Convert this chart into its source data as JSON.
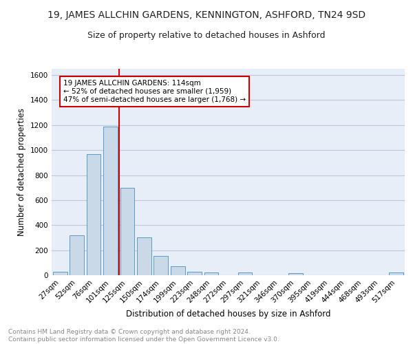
{
  "title1": "19, JAMES ALLCHIN GARDENS, KENNINGTON, ASHFORD, TN24 9SD",
  "title2": "Size of property relative to detached houses in Ashford",
  "xlabel": "Distribution of detached houses by size in Ashford",
  "ylabel": "Number of detached properties",
  "categories": [
    "27sqm",
    "52sqm",
    "76sqm",
    "101sqm",
    "125sqm",
    "150sqm",
    "174sqm",
    "199sqm",
    "223sqm",
    "248sqm",
    "272sqm",
    "297sqm",
    "321sqm",
    "346sqm",
    "370sqm",
    "395sqm",
    "419sqm",
    "444sqm",
    "468sqm",
    "493sqm",
    "517sqm"
  ],
  "values": [
    25,
    320,
    970,
    1190,
    700,
    300,
    155,
    70,
    25,
    20,
    0,
    20,
    0,
    0,
    15,
    0,
    0,
    0,
    0,
    0,
    20
  ],
  "bar_color": "#c9d9e8",
  "bar_edge_color": "#5a9ac5",
  "annotation_title": "19 JAMES ALLCHIN GARDENS: 114sqm",
  "annotation_line1": "← 52% of detached houses are smaller (1,959)",
  "annotation_line2": "47% of semi-detached houses are larger (1,768) →",
  "annotation_box_color": "#ffffff",
  "annotation_box_edge_color": "#cc0000",
  "vline_color": "#cc0000",
  "vline_x": 3.5,
  "ylim": [
    0,
    1650
  ],
  "yticks": [
    0,
    200,
    400,
    600,
    800,
    1000,
    1200,
    1400,
    1600
  ],
  "grid_color": "#c0c8d8",
  "bg_color": "#e8eef8",
  "footer": "Contains HM Land Registry data © Crown copyright and database right 2024.\nContains public sector information licensed under the Open Government Licence v3.0.",
  "title1_fontsize": 10,
  "title2_fontsize": 9,
  "xlabel_fontsize": 8.5,
  "ylabel_fontsize": 8.5,
  "footer_fontsize": 6.5,
  "tick_fontsize": 7.5,
  "annot_fontsize": 7.5
}
